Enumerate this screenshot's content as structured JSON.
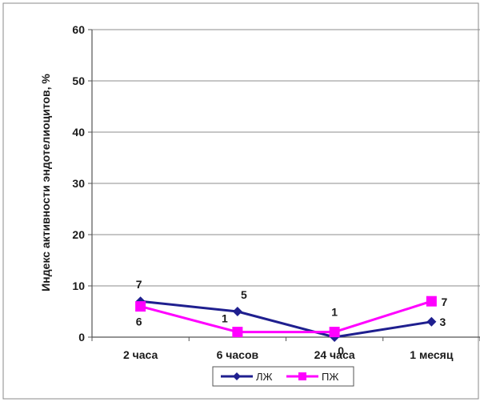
{
  "chart_data": {
    "type": "line",
    "title": "",
    "xlabel": "",
    "ylabel": "Индекс активности эндотелиоцитов, %",
    "categories": [
      "2 часа",
      "6 часов",
      "24 часа",
      "1 месяц"
    ],
    "ylim": [
      0,
      60
    ],
    "yticks": [
      0,
      10,
      20,
      30,
      40,
      50,
      60
    ],
    "grid": true,
    "legend_position": "bottom",
    "series": [
      {
        "name": "ЛЖ",
        "values": [
          7,
          5,
          0,
          3
        ],
        "color": "#1f1f8f",
        "marker": "diamond"
      },
      {
        "name": "ПЖ",
        "values": [
          6,
          1,
          1,
          7
        ],
        "color": "#ff00ff",
        "marker": "square"
      }
    ]
  }
}
